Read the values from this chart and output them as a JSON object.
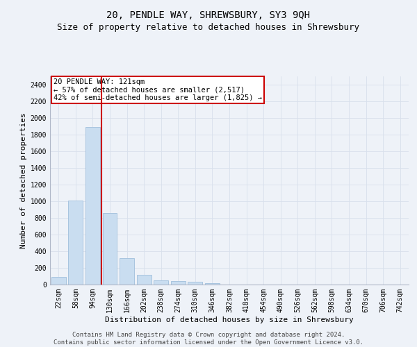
{
  "title": "20, PENDLE WAY, SHREWSBURY, SY3 9QH",
  "subtitle": "Size of property relative to detached houses in Shrewsbury",
  "xlabel": "Distribution of detached houses by size in Shrewsbury",
  "ylabel": "Number of detached properties",
  "footer_line1": "Contains HM Land Registry data © Crown copyright and database right 2024.",
  "footer_line2": "Contains public sector information licensed under the Open Government Licence v3.0.",
  "bar_labels": [
    "22sqm",
    "58sqm",
    "94sqm",
    "130sqm",
    "166sqm",
    "202sqm",
    "238sqm",
    "274sqm",
    "310sqm",
    "346sqm",
    "382sqm",
    "418sqm",
    "454sqm",
    "490sqm",
    "526sqm",
    "562sqm",
    "598sqm",
    "634sqm",
    "670sqm",
    "706sqm",
    "742sqm"
  ],
  "bar_values": [
    90,
    1010,
    1890,
    860,
    315,
    115,
    50,
    38,
    30,
    18,
    0,
    0,
    0,
    0,
    0,
    0,
    0,
    0,
    0,
    0,
    0
  ],
  "bar_color": "#c9ddf0",
  "bar_edge_color": "#a8c4df",
  "property_line_x": 2.5,
  "annotation_text": "20 PENDLE WAY: 121sqm\n← 57% of detached houses are smaller (2,517)\n42% of semi-detached houses are larger (1,825) →",
  "annotation_box_color": "white",
  "annotation_box_edge_color": "#cc0000",
  "vline_color": "#cc0000",
  "ylim": [
    0,
    2500
  ],
  "yticks": [
    0,
    200,
    400,
    600,
    800,
    1000,
    1200,
    1400,
    1600,
    1800,
    2000,
    2200,
    2400
  ],
  "grid_color": "#d8e0ec",
  "background_color": "#eef2f8",
  "title_fontsize": 10,
  "subtitle_fontsize": 9,
  "label_fontsize": 8,
  "tick_fontsize": 7,
  "footer_fontsize": 6.5
}
